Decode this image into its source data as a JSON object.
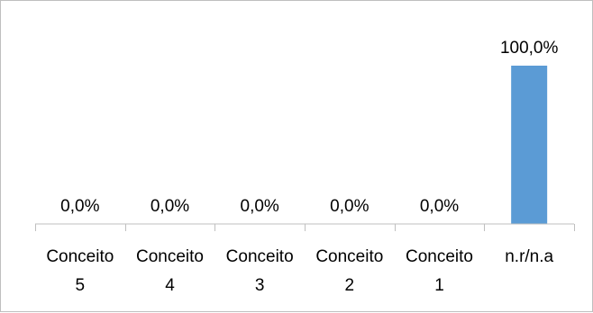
{
  "chart_data": {
    "type": "bar",
    "title": "",
    "xlabel": "",
    "ylabel": "",
    "categories": [
      [
        "Conceito",
        "5"
      ],
      [
        "Conceito",
        "4"
      ],
      [
        "Conceito",
        "3"
      ],
      [
        "Conceito",
        "2"
      ],
      [
        "Conceito",
        "1"
      ],
      [
        "n.r/n.a"
      ]
    ],
    "values": [
      0.0,
      0.0,
      0.0,
      0.0,
      0.0,
      100.0
    ],
    "data_labels": [
      "0,0%",
      "0,0%",
      "0,0%",
      "0,0%",
      "0,0%",
      "100,0%"
    ],
    "unit": "%",
    "ylim": [
      0,
      100
    ],
    "grid": false,
    "legend": "none",
    "bar_color": "#5b9bd5",
    "axis_color": "#bfbfbf"
  }
}
